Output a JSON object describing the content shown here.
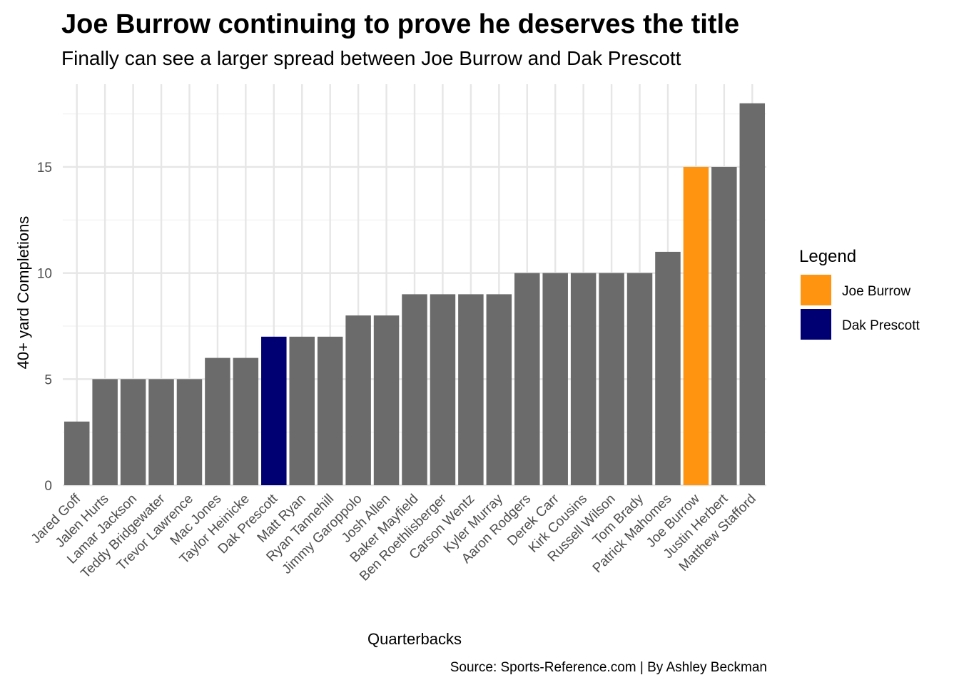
{
  "chart_data": {
    "type": "bar",
    "title": "Joe Burrow continuing to prove he deserves the title",
    "subtitle": "Finally can see a larger spread between Joe Burrow and Dak Prescott",
    "xlabel": "Quarterbacks",
    "ylabel": "40+ yard Completions",
    "caption": "Source: Sports-Reference.com | By Ashley Beckman",
    "ylim": [
      0,
      18
    ],
    "yticks": [
      0,
      5,
      10,
      15
    ],
    "grid": true,
    "categories": [
      "Jared Goff",
      "Jalen Hurts",
      "Lamar Jackson",
      "Teddy Bridgewater",
      "Trevor Lawrence",
      "Mac Jones",
      "Taylor Heinicke",
      "Dak Prescott",
      "Matt Ryan",
      "Ryan Tannehill",
      "Jimmy Garoppolo",
      "Josh Allen",
      "Baker Mayfield",
      "Ben Roethlisberger",
      "Carson Wentz",
      "Kyler Murray",
      "Aaron Rodgers",
      "Derek Carr",
      "Kirk Cousins",
      "Russell Wilson",
      "Tom Brady",
      "Patrick Mahomes",
      "Joe Burrow",
      "Justin Herbert",
      "Matthew Stafford"
    ],
    "values": [
      3,
      5,
      5,
      5,
      5,
      6,
      6,
      7,
      7,
      7,
      8,
      8,
      9,
      9,
      9,
      9,
      10,
      10,
      10,
      10,
      10,
      11,
      15,
      15,
      18
    ],
    "default_color": "#6b6b6b",
    "highlights": {
      "Joe Burrow": "#ff9410",
      "Dak Prescott": "#000073"
    },
    "legend": {
      "title": "Legend",
      "position": "right",
      "items": [
        {
          "label": "Joe Burrow",
          "color": "#ff9410"
        },
        {
          "label": "Dak Prescott",
          "color": "#000073"
        }
      ]
    }
  }
}
